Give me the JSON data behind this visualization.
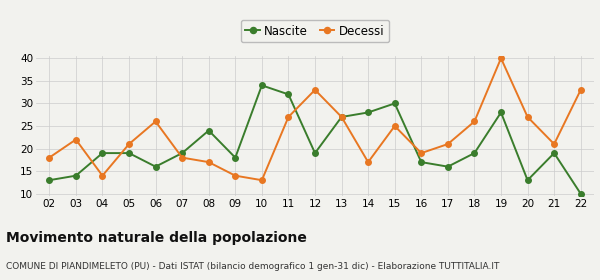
{
  "years": [
    "02",
    "03",
    "04",
    "05",
    "06",
    "07",
    "08",
    "09",
    "10",
    "11",
    "12",
    "13",
    "14",
    "15",
    "16",
    "17",
    "18",
    "19",
    "20",
    "21",
    "22"
  ],
  "nascite": [
    13,
    14,
    19,
    19,
    16,
    19,
    24,
    18,
    34,
    32,
    19,
    27,
    28,
    30,
    17,
    16,
    19,
    28,
    13,
    19,
    10
  ],
  "decessi": [
    18,
    22,
    14,
    21,
    26,
    18,
    17,
    14,
    13,
    27,
    33,
    27,
    17,
    25,
    19,
    21,
    26,
    40,
    27,
    21,
    33
  ],
  "nascite_color": "#3a7d2c",
  "decessi_color": "#e87722",
  "background_color": "#f2f2ee",
  "grid_color": "#cccccc",
  "title": "Movimento naturale della popolazione",
  "subtitle": "COMUNE DI PIANDIMELETO (PU) - Dati ISTAT (bilancio demografico 1 gen-31 dic) - Elaborazione TUTTITALIA.IT",
  "legend_nascite": "Nascite",
  "legend_decessi": "Decessi",
  "ylim": [
    10,
    40
  ],
  "yticks": [
    10,
    15,
    20,
    25,
    30,
    35,
    40
  ],
  "title_fontsize": 10,
  "subtitle_fontsize": 6.5,
  "legend_fontsize": 8.5,
  "tick_fontsize": 7.5
}
